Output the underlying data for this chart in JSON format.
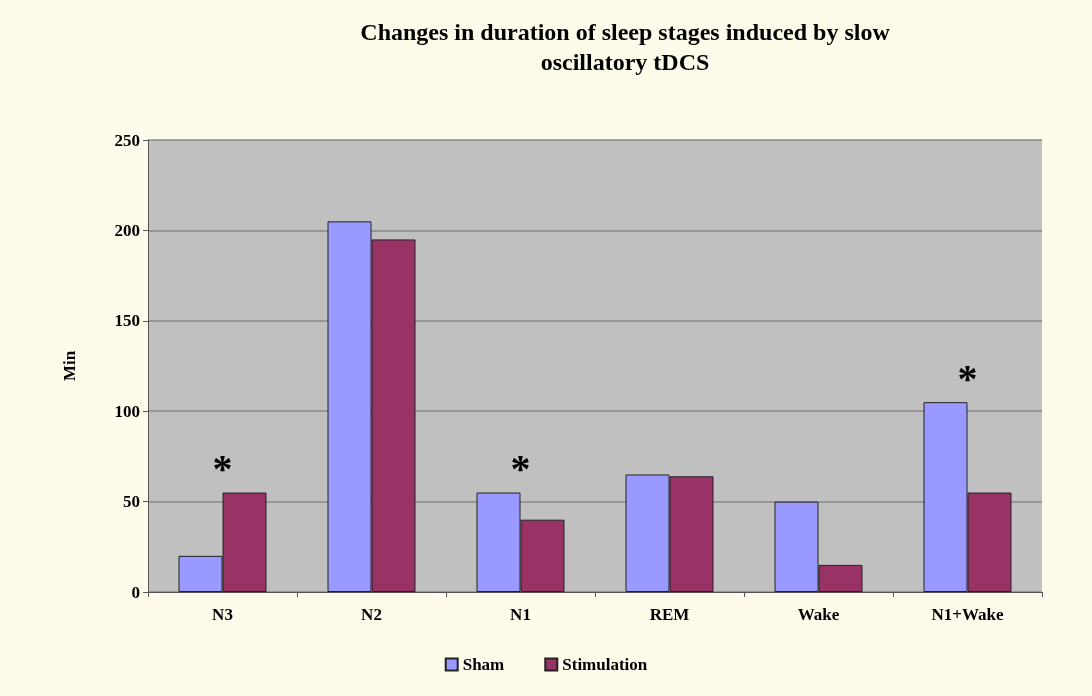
{
  "chart_data": {
    "type": "bar",
    "title": "Changes in duration of sleep stages induced by slow\noscillatory tDCS",
    "ylabel": "Min",
    "categories": [
      "N3",
      "N2",
      "N1",
      "REM",
      "Wake",
      "N1+Wake"
    ],
    "series": [
      {
        "name": "Sham",
        "color": "#9999ff",
        "values": [
          20,
          205,
          55,
          65,
          50,
          105
        ]
      },
      {
        "name": "Stimulation",
        "color": "#993366",
        "values": [
          55,
          195,
          40,
          64,
          15,
          55
        ]
      }
    ],
    "ylim": [
      0,
      250
    ],
    "yticks": [
      0,
      50,
      100,
      150,
      200,
      250
    ],
    "grid": "y",
    "legend": "bottom",
    "annotations": [
      {
        "text": "*",
        "x": "N3",
        "y": 55
      },
      {
        "text": "*",
        "x": "N1",
        "y": 55
      },
      {
        "text": "*",
        "x": "N1+Wake",
        "y": 105
      }
    ]
  }
}
